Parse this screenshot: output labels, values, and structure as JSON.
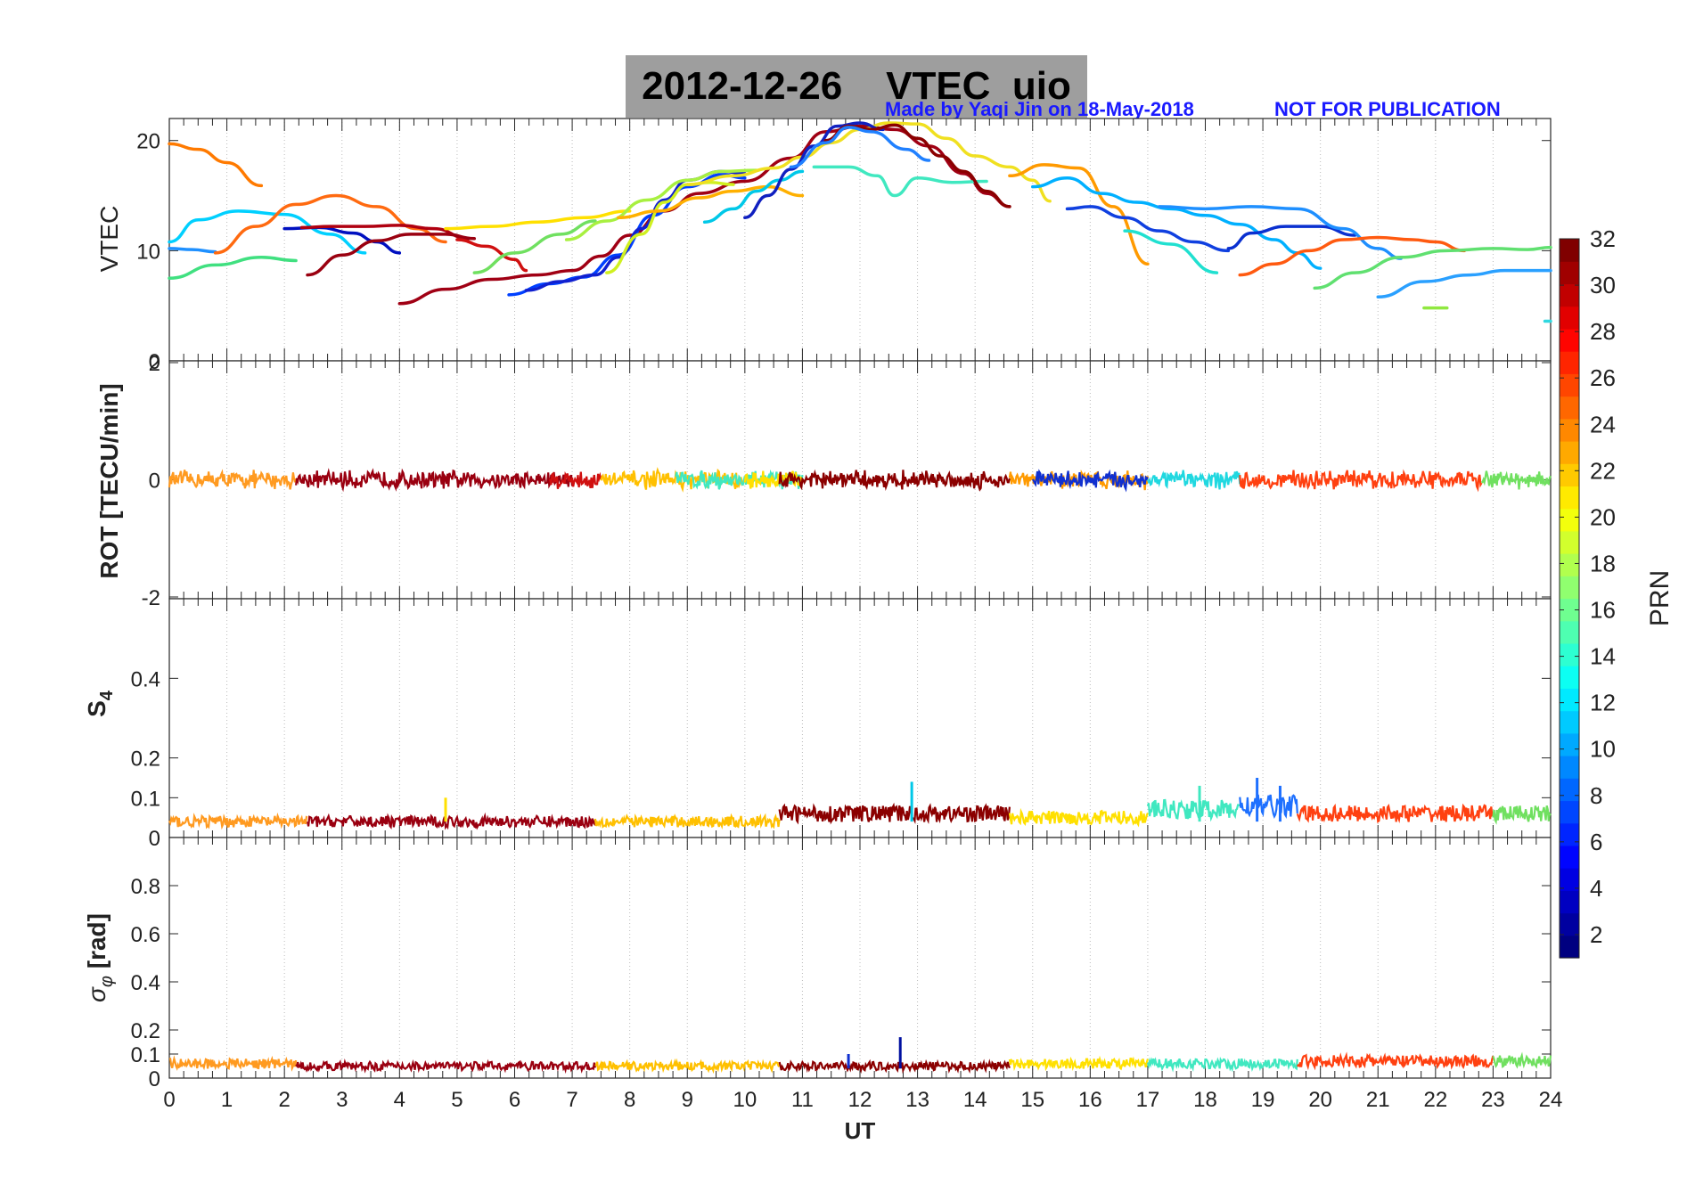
{
  "figure": {
    "title": "2012-12-26    VTEC  uio",
    "credit": "Made by Yaqi Jin on 18-May-2018",
    "notice": "NOT FOR PUBLICATION",
    "xlabel": "UT",
    "colorbar_label": "PRN",
    "colorbar_ticks": [
      "2",
      "4",
      "6",
      "8",
      "10",
      "12",
      "14",
      "16",
      "18",
      "20",
      "22",
      "24",
      "26",
      "28",
      "30",
      "32"
    ]
  },
  "chart_data": [
    {
      "type": "line",
      "panel": "vtec",
      "ylabel": "VTEC",
      "xlim": [
        0,
        24
      ],
      "ylim": [
        0,
        22
      ],
      "yticks": [
        0,
        10,
        20
      ],
      "xticks": [
        0,
        1,
        2,
        3,
        4,
        5,
        6,
        7,
        8,
        9,
        10,
        11,
        12,
        13,
        14,
        15,
        16,
        17,
        18,
        19,
        20,
        21,
        22,
        23,
        24
      ],
      "grid": "x-dotted",
      "series": [
        {
          "prn": 24,
          "color": "#ff7a00",
          "x": [
            0.0,
            0.5,
            1.0,
            1.6
          ],
          "y": [
            19.7,
            19.2,
            18.0,
            15.9
          ]
        },
        {
          "prn": 11,
          "color": "#00d0ff",
          "x": [
            0.0,
            0.5,
            1.2,
            2.0,
            2.8,
            3.4
          ],
          "y": [
            10.8,
            12.8,
            13.6,
            13.3,
            11.5,
            9.8
          ]
        },
        {
          "prn": 8,
          "color": "#1e90ff",
          "x": [
            0.0,
            0.4,
            0.8
          ],
          "y": [
            10.2,
            10.1,
            9.9
          ]
        },
        {
          "prn": 16,
          "color": "#40e080",
          "x": [
            0.0,
            0.8,
            1.6,
            2.2
          ],
          "y": [
            7.5,
            8.7,
            9.4,
            9.1
          ]
        },
        {
          "prn": 24,
          "color": "#ff6a10",
          "x": [
            0.8,
            1.5,
            2.2,
            2.9,
            3.6,
            4.3,
            4.8
          ],
          "y": [
            9.8,
            12.2,
            14.2,
            15.0,
            14.0,
            12.0,
            10.8
          ]
        },
        {
          "prn": 2,
          "color": "#0010c0",
          "x": [
            2.0,
            2.6,
            3.2,
            3.6,
            4.0
          ],
          "y": [
            12.0,
            12.1,
            11.6,
            10.8,
            9.8
          ]
        },
        {
          "prn": 30,
          "color": "#b00010",
          "x": [
            2.3,
            2.8,
            3.4,
            4.0,
            4.6,
            5.2
          ],
          "y": [
            12.1,
            12.2,
            12.2,
            12.3,
            12.0,
            11.1
          ]
        },
        {
          "prn": 31,
          "color": "#9a0010",
          "x": [
            2.4,
            3.0,
            3.6,
            4.2,
            4.8,
            5.3
          ],
          "y": [
            7.8,
            9.6,
            10.9,
            11.5,
            11.5,
            11.1
          ]
        },
        {
          "prn": 21,
          "color": "#ffe000",
          "x": [
            4.8,
            5.6,
            6.4,
            7.2,
            8.0
          ],
          "y": [
            12.0,
            12.2,
            12.6,
            13.0,
            13.6
          ]
        },
        {
          "prn": 27,
          "color": "#d01010",
          "x": [
            5.0,
            5.5,
            6.0,
            6.2
          ],
          "y": [
            11.0,
            10.4,
            9.2,
            8.2
          ]
        },
        {
          "prn": 30,
          "color": "#a00014",
          "x": [
            4.0,
            4.8,
            5.6,
            6.4,
            7.0,
            7.5,
            8.0,
            8.6,
            9.2,
            10.0,
            10.8,
            11.4,
            12.0,
            12.6,
            13.2,
            13.8,
            14.2,
            14.6
          ],
          "y": [
            5.2,
            6.5,
            7.4,
            7.8,
            8.2,
            9.5,
            11.4,
            13.6,
            15.2,
            16.3,
            18.4,
            20.8,
            21.3,
            21.0,
            19.5,
            17.0,
            15.2,
            14.0
          ]
        },
        {
          "prn": 16,
          "color": "#70e060",
          "x": [
            5.3,
            6.0,
            6.8,
            7.4
          ],
          "y": [
            8.0,
            9.8,
            11.5,
            12.7
          ]
        },
        {
          "prn": 6,
          "color": "#0040ff",
          "x": [
            5.9,
            6.6,
            7.2,
            7.8,
            8.4,
            9.0,
            9.6,
            10.0
          ],
          "y": [
            6.0,
            7.0,
            7.6,
            9.6,
            13.2,
            15.8,
            16.9,
            16.6
          ]
        },
        {
          "prn": 4,
          "color": "#1020d0",
          "x": [
            6.2,
            6.8,
            7.4,
            7.8,
            8.2,
            8.6,
            9.0,
            9.6,
            10.0
          ],
          "y": [
            6.4,
            7.2,
            7.8,
            9.4,
            12.0,
            14.6,
            16.4,
            17.2,
            17.0
          ]
        },
        {
          "prn": 19,
          "color": "#d0f020",
          "x": [
            7.6,
            8.2,
            8.6,
            9.0,
            9.4,
            9.8
          ],
          "y": [
            8.0,
            11.5,
            14.4,
            16.0,
            16.2,
            16.0
          ]
        },
        {
          "prn": 18,
          "color": "#a8f040",
          "x": [
            6.9,
            7.6,
            8.3,
            9.0,
            9.6,
            10.2
          ],
          "y": [
            11.0,
            12.7,
            14.6,
            16.4,
            17.2,
            17.3
          ]
        },
        {
          "prn": 22,
          "color": "#ffb000",
          "x": [
            7.8,
            8.5,
            9.2,
            9.8,
            10.4,
            11.0
          ],
          "y": [
            13.0,
            13.6,
            14.8,
            15.4,
            15.8,
            15.0
          ]
        },
        {
          "prn": 13,
          "color": "#00c8e8",
          "x": [
            9.3,
            9.8,
            10.2,
            10.6,
            11.0
          ],
          "y": [
            12.6,
            13.8,
            15.4,
            16.4,
            17.2
          ]
        },
        {
          "prn": 20,
          "color": "#f0e020",
          "x": [
            9.0,
            9.8,
            10.5,
            11.0,
            11.5,
            12.0,
            12.5,
            13.0,
            13.5,
            14.0,
            14.6,
            15.0,
            15.3
          ],
          "y": [
            16.0,
            16.8,
            17.5,
            18.5,
            19.8,
            21.0,
            21.6,
            21.5,
            20.2,
            18.6,
            17.6,
            16.4,
            14.5
          ]
        },
        {
          "prn": 3,
          "color": "#1020c0",
          "x": [
            10.0,
            10.4,
            10.8,
            11.2,
            11.6,
            12.0,
            12.4
          ],
          "y": [
            13.0,
            15.0,
            17.4,
            19.5,
            21.3,
            21.6,
            21.0
          ]
        },
        {
          "prn": 15,
          "color": "#40e8c0",
          "x": [
            11.2,
            11.8,
            12.3,
            12.6,
            13.0,
            13.6,
            14.2
          ],
          "y": [
            17.6,
            17.6,
            16.8,
            15.0,
            16.6,
            16.2,
            16.3
          ]
        },
        {
          "prn": 32,
          "color": "#8b0000",
          "x": [
            11.4,
            11.8,
            12.2,
            12.6,
            13.0,
            13.4,
            13.8,
            14.2,
            14.6
          ],
          "y": [
            20.0,
            21.3,
            21.0,
            21.4,
            20.2,
            18.6,
            17.2,
            15.4,
            14.0
          ]
        },
        {
          "prn": 9,
          "color": "#2080ff",
          "x": [
            10.8,
            11.4,
            11.8,
            12.2,
            12.8,
            13.2
          ],
          "y": [
            17.6,
            19.8,
            21.2,
            20.8,
            19.2,
            18.2
          ]
        },
        {
          "prn": 23,
          "color": "#ff9a00",
          "x": [
            14.6,
            15.2,
            15.8,
            16.4,
            17.0
          ],
          "y": [
            16.8,
            17.8,
            17.5,
            14.0,
            8.8
          ]
        },
        {
          "prn": 12,
          "color": "#00b0ff",
          "x": [
            15.0,
            15.6,
            16.2,
            16.8,
            17.4,
            18.0,
            18.6,
            19.2,
            19.6,
            20.0
          ],
          "y": [
            15.8,
            16.6,
            15.2,
            14.4,
            13.8,
            13.2,
            12.4,
            11.0,
            9.8,
            8.4
          ]
        },
        {
          "prn": 5,
          "color": "#1040e0",
          "x": [
            15.6,
            16.0,
            16.6,
            17.2,
            17.8,
            18.4
          ],
          "y": [
            13.8,
            14.0,
            13.0,
            11.8,
            10.8,
            10.0
          ]
        },
        {
          "prn": 4,
          "color": "#0a30d0",
          "x": [
            18.4,
            18.8,
            19.4,
            20.0,
            20.6
          ],
          "y": [
            10.2,
            11.6,
            12.2,
            12.2,
            11.4
          ]
        },
        {
          "prn": 10,
          "color": "#1e8fff",
          "x": [
            17.2,
            18.0,
            18.8,
            19.6,
            20.4,
            21.0,
            21.4
          ],
          "y": [
            14.0,
            13.8,
            14.0,
            13.8,
            12.0,
            10.2,
            9.3
          ]
        },
        {
          "prn": 14,
          "color": "#20e0d0",
          "x": [
            16.6,
            17.4,
            18.2
          ],
          "y": [
            11.8,
            10.6,
            8.0
          ]
        },
        {
          "prn": 25,
          "color": "#ff5a10",
          "x": [
            18.6,
            19.2,
            19.8,
            20.4,
            21.0,
            21.6,
            22.0,
            22.5
          ],
          "y": [
            7.8,
            8.8,
            10.0,
            11.0,
            11.2,
            11.0,
            10.8,
            10.0
          ]
        },
        {
          "prn": 17,
          "color": "#60e070",
          "x": [
            19.9,
            20.6,
            21.4,
            22.2,
            23.0,
            23.6,
            24.0
          ],
          "y": [
            6.6,
            8.0,
            9.4,
            10.0,
            10.2,
            10.1,
            10.3
          ]
        },
        {
          "prn": 9,
          "color": "#2aa0ff",
          "x": [
            21.0,
            21.8,
            22.6,
            23.2,
            24.0
          ],
          "y": [
            5.8,
            7.2,
            7.8,
            8.2,
            8.2
          ]
        },
        {
          "prn": 18,
          "color": "#90e840",
          "x": [
            21.8,
            22.2
          ],
          "y": [
            4.8,
            4.8
          ]
        },
        {
          "prn": 13,
          "color": "#30d8e0",
          "x": [
            23.9,
            24.0
          ],
          "y": [
            3.6,
            3.6
          ]
        }
      ]
    },
    {
      "type": "line",
      "panel": "rot",
      "ylabel": "ROT [TECU/min]",
      "xlim": [
        0,
        24
      ],
      "ylim": [
        -2,
        2
      ],
      "yticks": [
        -2,
        0,
        2
      ],
      "grid": "x-dotted",
      "noise_amplitude": 0.12,
      "segments": [
        {
          "color": "#ff9a20",
          "x0": 0.0,
          "x1": 2.2
        },
        {
          "color": "#9a0010",
          "x0": 2.2,
          "x1": 7.0
        },
        {
          "color": "#d01010",
          "x0": 6.6,
          "x1": 7.5
        },
        {
          "color": "#ffc000",
          "x0": 7.5,
          "x1": 10.0
        },
        {
          "color": "#40e8c0",
          "x0": 8.8,
          "x1": 11.0
        },
        {
          "color": "#ffe000",
          "x0": 10.0,
          "x1": 11.0
        },
        {
          "color": "#8b0000",
          "x0": 10.6,
          "x1": 14.6
        },
        {
          "color": "#ff9a00",
          "x0": 14.6,
          "x1": 17.0
        },
        {
          "color": "#1030d0",
          "x0": 15.0,
          "x1": 17.0
        },
        {
          "color": "#20d8e0",
          "x0": 17.0,
          "x1": 18.6
        },
        {
          "color": "#ff4010",
          "x0": 18.6,
          "x1": 22.8
        },
        {
          "color": "#70e060",
          "x0": 22.8,
          "x1": 24.0
        }
      ]
    },
    {
      "type": "line",
      "panel": "s4",
      "ylabel": "S4",
      "xlim": [
        0,
        24
      ],
      "ylim": [
        0,
        0.6
      ],
      "yticks": [
        0,
        0.1,
        0.2,
        0.4
      ],
      "grid": "x-dotted",
      "segments": [
        {
          "color": "#ff9a20",
          "x0": 0.0,
          "x1": 2.4,
          "level": 0.04
        },
        {
          "color": "#9a0010",
          "x0": 2.4,
          "x1": 7.4,
          "level": 0.04
        },
        {
          "color": "#ffc000",
          "x0": 7.4,
          "x1": 10.6,
          "level": 0.04
        },
        {
          "color": "#8b0000",
          "x0": 10.6,
          "x1": 14.6,
          "level": 0.06
        },
        {
          "color": "#ffe000",
          "x0": 14.6,
          "x1": 17.0,
          "level": 0.05
        },
        {
          "color": "#40e8c0",
          "x0": 17.0,
          "x1": 18.6,
          "level": 0.07
        },
        {
          "color": "#1e70ff",
          "x0": 18.6,
          "x1": 19.6,
          "level": 0.08
        },
        {
          "color": "#ff4010",
          "x0": 19.6,
          "x1": 23.0,
          "level": 0.06
        },
        {
          "color": "#70e060",
          "x0": 23.0,
          "x1": 24.0,
          "level": 0.06
        }
      ],
      "spikes": [
        {
          "x": 4.8,
          "y": 0.1,
          "color": "#ffe000"
        },
        {
          "x": 12.9,
          "y": 0.14,
          "color": "#00c8e8"
        },
        {
          "x": 17.9,
          "y": 0.13,
          "color": "#40e8c0"
        },
        {
          "x": 18.9,
          "y": 0.15,
          "color": "#1e70ff"
        },
        {
          "x": 19.3,
          "y": 0.13,
          "color": "#1e70ff"
        }
      ]
    },
    {
      "type": "line",
      "panel": "sigma_phi",
      "ylabel": "σφ [rad]",
      "xlim": [
        0,
        24
      ],
      "ylim": [
        0,
        1.0
      ],
      "yticks": [
        0,
        0.1,
        0.2,
        0.4,
        0.6,
        0.8
      ],
      "grid": "x-dotted",
      "segments": [
        {
          "color": "#ff9a20",
          "x0": 0.0,
          "x1": 2.2,
          "level": 0.06
        },
        {
          "color": "#9a0010",
          "x0": 2.2,
          "x1": 7.4,
          "level": 0.05
        },
        {
          "color": "#ffc000",
          "x0": 7.4,
          "x1": 10.6,
          "level": 0.05
        },
        {
          "color": "#8b0000",
          "x0": 10.6,
          "x1": 14.6,
          "level": 0.05
        },
        {
          "color": "#ffe000",
          "x0": 14.6,
          "x1": 17.0,
          "level": 0.06
        },
        {
          "color": "#40e8c0",
          "x0": 17.0,
          "x1": 19.6,
          "level": 0.06
        },
        {
          "color": "#ff4010",
          "x0": 19.6,
          "x1": 23.0,
          "level": 0.07
        },
        {
          "color": "#70e060",
          "x0": 23.0,
          "x1": 24.0,
          "level": 0.07
        }
      ],
      "spikes": [
        {
          "x": 12.7,
          "y": 0.17,
          "color": "#0010a0"
        },
        {
          "x": 11.8,
          "y": 0.1,
          "color": "#1030d0"
        }
      ]
    }
  ]
}
